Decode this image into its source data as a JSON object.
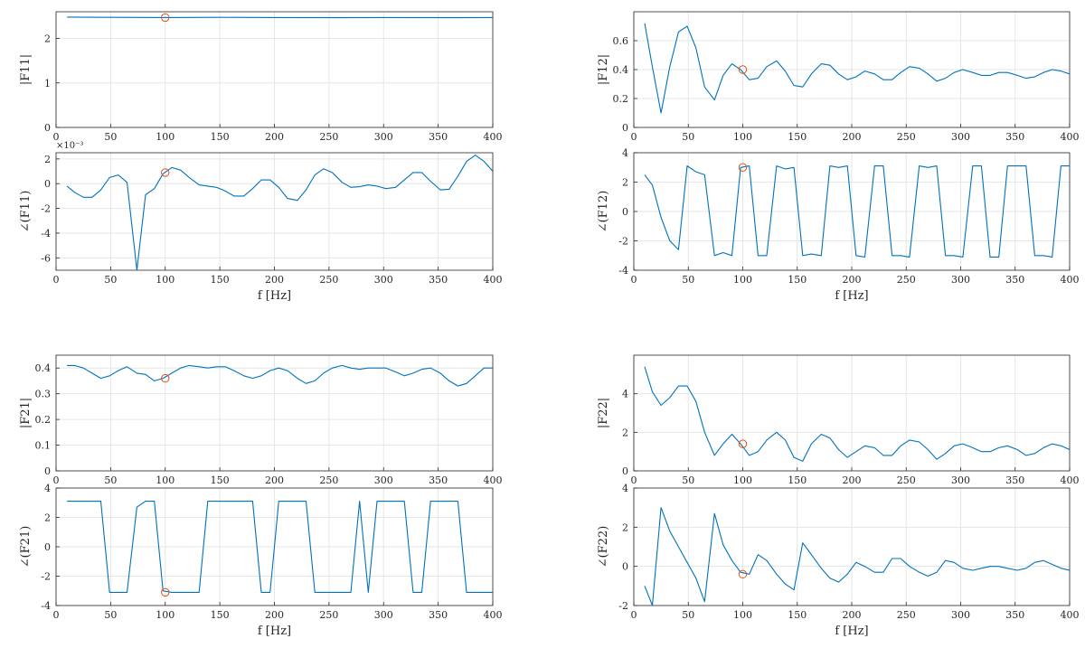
{
  "colors": {
    "series": "#0072BD",
    "marker": "#D95319"
  },
  "chart_data": [
    {
      "type": "line",
      "xlabel": "",
      "ylabel": "|F11|",
      "xlim": [
        0,
        400
      ],
      "ylim": [
        0,
        2.6
      ],
      "xticks": [
        "0",
        "50",
        "100",
        "150",
        "200",
        "250",
        "300",
        "350",
        "400"
      ],
      "yticks": [
        {
          "v": 0,
          "t": "0"
        },
        {
          "v": 1,
          "t": "1"
        },
        {
          "v": 2,
          "t": "2"
        }
      ],
      "exponent": "",
      "grid": true,
      "x": [
        10,
        50,
        100,
        150,
        200,
        250,
        300,
        350,
        400
      ],
      "y": [
        2.48,
        2.475,
        2.47,
        2.475,
        2.47,
        2.465,
        2.47,
        2.465,
        2.47
      ],
      "marker": {
        "x": 100,
        "y": 2.47
      }
    },
    {
      "type": "line",
      "xlabel": "f [Hz]",
      "ylabel": "∠(F11)",
      "xlim": [
        0,
        400
      ],
      "ylim": [
        -7,
        2.5
      ],
      "xticks": [
        "0",
        "50",
        "100",
        "150",
        "200",
        "250",
        "300",
        "350",
        "400"
      ],
      "yticks": [
        {
          "v": -6,
          "t": "-6"
        },
        {
          "v": -4,
          "t": "-4"
        },
        {
          "v": -2,
          "t": "-2"
        },
        {
          "v": 0,
          "t": "0"
        },
        {
          "v": 2,
          "t": "2"
        }
      ],
      "exponent": "×10⁻³",
      "grid": true,
      "x": [
        10,
        17,
        25,
        33,
        41,
        49,
        57,
        65,
        74,
        82,
        90,
        98,
        106,
        114,
        122,
        131,
        139,
        147,
        155,
        163,
        172,
        180,
        188,
        196,
        204,
        212,
        221,
        229,
        237,
        245,
        253,
        262,
        270,
        278,
        286,
        294,
        302,
        311,
        319,
        327,
        335,
        343,
        352,
        360,
        368,
        376,
        384,
        392,
        400
      ],
      "y": [
        -0.2,
        -0.7,
        -1.1,
        -1.1,
        -0.5,
        0.5,
        0.7,
        0.1,
        -7.0,
        -0.9,
        -0.4,
        0.8,
        1.3,
        1.1,
        0.5,
        -0.1,
        -0.2,
        -0.3,
        -0.6,
        -1.0,
        -1.0,
        -0.4,
        0.3,
        0.3,
        -0.3,
        -1.2,
        -1.35,
        -0.5,
        0.7,
        1.2,
        0.9,
        0.1,
        -0.3,
        -0.25,
        -0.1,
        -0.2,
        -0.4,
        -0.3,
        0.3,
        0.9,
        0.9,
        0.2,
        -0.5,
        -0.45,
        0.6,
        1.8,
        2.3,
        1.8,
        1.0
      ],
      "marker": {
        "x": 100,
        "y": 0.9
      }
    },
    {
      "type": "line",
      "xlabel": "",
      "ylabel": "|F12|",
      "xlim": [
        0,
        400
      ],
      "ylim": [
        0,
        0.8
      ],
      "xticks": [
        "0",
        "50",
        "100",
        "150",
        "200",
        "250",
        "300",
        "350",
        "400"
      ],
      "yticks": [
        {
          "v": 0,
          "t": "0"
        },
        {
          "v": 0.2,
          "t": "0.2"
        },
        {
          "v": 0.4,
          "t": "0.4"
        },
        {
          "v": 0.6,
          "t": "0.6"
        }
      ],
      "exponent": "",
      "grid": true,
      "x": [
        10,
        17,
        25,
        33,
        41,
        49,
        57,
        65,
        74,
        82,
        90,
        98,
        106,
        114,
        122,
        131,
        139,
        147,
        155,
        163,
        172,
        180,
        188,
        196,
        204,
        212,
        221,
        229,
        237,
        245,
        253,
        262,
        270,
        278,
        286,
        294,
        302,
        311,
        319,
        327,
        335,
        343,
        352,
        360,
        368,
        376,
        384,
        392,
        400
      ],
      "y": [
        0.72,
        0.42,
        0.1,
        0.42,
        0.66,
        0.7,
        0.55,
        0.28,
        0.19,
        0.36,
        0.44,
        0.4,
        0.33,
        0.34,
        0.42,
        0.46,
        0.39,
        0.29,
        0.28,
        0.37,
        0.44,
        0.43,
        0.37,
        0.33,
        0.35,
        0.39,
        0.37,
        0.33,
        0.33,
        0.38,
        0.42,
        0.41,
        0.37,
        0.32,
        0.34,
        0.38,
        0.4,
        0.38,
        0.36,
        0.36,
        0.38,
        0.38,
        0.36,
        0.34,
        0.35,
        0.38,
        0.4,
        0.39,
        0.37
      ],
      "marker": {
        "x": 100,
        "y": 0.4
      }
    },
    {
      "type": "line",
      "xlabel": "f [Hz]",
      "ylabel": "∠(F12)",
      "xlim": [
        0,
        400
      ],
      "ylim": [
        -4,
        4
      ],
      "xticks": [
        "0",
        "50",
        "100",
        "150",
        "200",
        "250",
        "300",
        "350",
        "400"
      ],
      "yticks": [
        {
          "v": -4,
          "t": "-4"
        },
        {
          "v": -2,
          "t": "-2"
        },
        {
          "v": 0,
          "t": "0"
        },
        {
          "v": 2,
          "t": "2"
        },
        {
          "v": 4,
          "t": "4"
        }
      ],
      "exponent": "",
      "grid": true,
      "x": [
        10,
        17,
        25,
        33,
        41,
        49,
        57,
        65,
        74,
        82,
        90,
        98,
        106,
        114,
        122,
        131,
        139,
        147,
        155,
        163,
        172,
        180,
        188,
        196,
        204,
        212,
        221,
        229,
        237,
        245,
        253,
        262,
        270,
        278,
        286,
        294,
        302,
        311,
        319,
        327,
        335,
        343,
        352,
        360,
        368,
        376,
        384,
        392,
        400
      ],
      "y": [
        2.5,
        1.8,
        -0.4,
        -2.0,
        -2.6,
        3.1,
        2.7,
        2.5,
        -3.0,
        -2.8,
        -3.0,
        3.0,
        3.1,
        -3.0,
        -3.0,
        3.1,
        2.9,
        3.0,
        -3.0,
        -2.9,
        -3.0,
        3.1,
        3.0,
        3.1,
        -3.0,
        -3.1,
        3.1,
        3.1,
        -3.0,
        -3.0,
        -3.1,
        3.1,
        3.0,
        3.1,
        -3.0,
        -3.0,
        -3.1,
        3.1,
        3.1,
        -3.1,
        -3.1,
        3.1,
        3.1,
        3.1,
        -3.0,
        -3.0,
        -3.1,
        3.1,
        3.1
      ],
      "marker": {
        "x": 100,
        "y": 3.0
      }
    },
    {
      "type": "line",
      "xlabel": "",
      "ylabel": "|F21|",
      "xlim": [
        0,
        400
      ],
      "ylim": [
        0,
        0.45
      ],
      "xticks": [
        "0",
        "50",
        "100",
        "150",
        "200",
        "250",
        "300",
        "350",
        "400"
      ],
      "yticks": [
        {
          "v": 0,
          "t": "0"
        },
        {
          "v": 0.1,
          "t": "0.1"
        },
        {
          "v": 0.2,
          "t": "0.2"
        },
        {
          "v": 0.3,
          "t": "0.3"
        },
        {
          "v": 0.4,
          "t": "0.4"
        }
      ],
      "exponent": "",
      "grid": true,
      "x": [
        10,
        17,
        25,
        33,
        41,
        49,
        57,
        65,
        74,
        82,
        90,
        98,
        106,
        114,
        122,
        131,
        139,
        147,
        155,
        163,
        172,
        180,
        188,
        196,
        204,
        212,
        221,
        229,
        237,
        245,
        253,
        262,
        270,
        278,
        286,
        294,
        302,
        311,
        319,
        327,
        335,
        343,
        352,
        360,
        368,
        376,
        384,
        392,
        400
      ],
      "y": [
        0.41,
        0.41,
        0.4,
        0.38,
        0.36,
        0.37,
        0.39,
        0.405,
        0.38,
        0.375,
        0.35,
        0.36,
        0.38,
        0.4,
        0.41,
        0.405,
        0.4,
        0.405,
        0.405,
        0.39,
        0.37,
        0.36,
        0.37,
        0.39,
        0.4,
        0.39,
        0.36,
        0.34,
        0.35,
        0.38,
        0.4,
        0.41,
        0.4,
        0.395,
        0.4,
        0.4,
        0.4,
        0.385,
        0.37,
        0.38,
        0.395,
        0.4,
        0.38,
        0.35,
        0.33,
        0.34,
        0.37,
        0.4,
        0.4
      ],
      "marker": {
        "x": 100,
        "y": 0.36
      }
    },
    {
      "type": "line",
      "xlabel": "f [Hz]",
      "ylabel": "∠(F21)",
      "xlim": [
        0,
        400
      ],
      "ylim": [
        -4,
        4
      ],
      "xticks": [
        "0",
        "50",
        "100",
        "150",
        "200",
        "250",
        "300",
        "350",
        "400"
      ],
      "yticks": [
        {
          "v": -4,
          "t": "-4"
        },
        {
          "v": -2,
          "t": "-2"
        },
        {
          "v": 0,
          "t": "0"
        },
        {
          "v": 2,
          "t": "2"
        },
        {
          "v": 4,
          "t": "4"
        }
      ],
      "exponent": "",
      "grid": true,
      "x": [
        10,
        17,
        25,
        33,
        41,
        49,
        57,
        65,
        74,
        82,
        90,
        98,
        106,
        114,
        122,
        131,
        139,
        147,
        155,
        163,
        172,
        180,
        188,
        196,
        204,
        212,
        221,
        229,
        237,
        245,
        253,
        262,
        270,
        278,
        286,
        294,
        302,
        311,
        319,
        327,
        335,
        343,
        352,
        360,
        368,
        376,
        384,
        392,
        400
      ],
      "y": [
        3.1,
        3.1,
        3.1,
        3.1,
        3.1,
        -3.1,
        -3.1,
        -3.1,
        2.7,
        3.1,
        3.1,
        -3.0,
        -3.1,
        -3.1,
        -3.1,
        -3.1,
        3.1,
        3.1,
        3.1,
        3.1,
        3.1,
        3.1,
        -3.1,
        -3.1,
        3.1,
        3.1,
        3.1,
        3.1,
        -3.1,
        -3.1,
        -3.1,
        -3.1,
        -3.1,
        3.1,
        -3.1,
        3.1,
        3.1,
        3.1,
        3.1,
        -3.1,
        -3.1,
        3.1,
        3.1,
        3.1,
        3.1,
        -3.1,
        -3.1,
        -3.1,
        -3.1
      ],
      "marker": {
        "x": 100,
        "y": -3.1
      }
    },
    {
      "type": "line",
      "xlabel": "",
      "ylabel": "|F22|",
      "xlim": [
        0,
        400
      ],
      "ylim": [
        0,
        6
      ],
      "xticks": [
        "0",
        "50",
        "100",
        "150",
        "200",
        "250",
        "300",
        "350",
        "400"
      ],
      "yticks": [
        {
          "v": 0,
          "t": "0"
        },
        {
          "v": 2,
          "t": "2"
        },
        {
          "v": 4,
          "t": "4"
        }
      ],
      "exponent": "",
      "grid": true,
      "x": [
        10,
        17,
        25,
        33,
        41,
        49,
        57,
        65,
        74,
        82,
        90,
        98,
        106,
        114,
        122,
        131,
        139,
        147,
        155,
        163,
        172,
        180,
        188,
        196,
        204,
        212,
        221,
        229,
        237,
        245,
        253,
        262,
        270,
        278,
        286,
        294,
        302,
        311,
        319,
        327,
        335,
        343,
        352,
        360,
        368,
        376,
        384,
        392,
        400
      ],
      "y": [
        5.4,
        4.1,
        3.4,
        3.8,
        4.4,
        4.4,
        3.6,
        2.0,
        0.8,
        1.4,
        1.9,
        1.4,
        0.8,
        1.0,
        1.6,
        2.0,
        1.6,
        0.7,
        0.5,
        1.4,
        1.9,
        1.7,
        1.1,
        0.7,
        1.0,
        1.3,
        1.2,
        0.8,
        0.8,
        1.3,
        1.6,
        1.5,
        1.1,
        0.6,
        0.9,
        1.3,
        1.4,
        1.2,
        1.0,
        1.0,
        1.2,
        1.3,
        1.1,
        0.8,
        0.9,
        1.2,
        1.4,
        1.3,
        1.1
      ],
      "marker": {
        "x": 100,
        "y": 1.4
      }
    },
    {
      "type": "line",
      "xlabel": "f [Hz]",
      "ylabel": "∠(F22)",
      "xlim": [
        0,
        400
      ],
      "ylim": [
        -2,
        4
      ],
      "xticks": [
        "0",
        "50",
        "100",
        "150",
        "200",
        "250",
        "300",
        "350",
        "400"
      ],
      "yticks": [
        {
          "v": -2,
          "t": "-2"
        },
        {
          "v": 0,
          "t": "0"
        },
        {
          "v": 2,
          "t": "2"
        },
        {
          "v": 4,
          "t": "4"
        }
      ],
      "exponent": "",
      "grid": true,
      "x": [
        10,
        17,
        25,
        33,
        41,
        49,
        57,
        65,
        74,
        82,
        90,
        98,
        106,
        114,
        122,
        131,
        139,
        147,
        155,
        163,
        172,
        180,
        188,
        196,
        204,
        212,
        221,
        229,
        237,
        245,
        253,
        262,
        270,
        278,
        286,
        294,
        302,
        311,
        319,
        327,
        335,
        343,
        352,
        360,
        368,
        376,
        384,
        392,
        400
      ],
      "y": [
        -1.0,
        -2.0,
        3.0,
        1.8,
        1.0,
        0.2,
        -0.6,
        -1.8,
        2.7,
        1.1,
        0.3,
        -0.3,
        -0.4,
        0.6,
        0.3,
        -0.4,
        -0.9,
        -1.2,
        1.2,
        0.6,
        -0.1,
        -0.6,
        -0.8,
        -0.4,
        0.2,
        0.0,
        -0.3,
        -0.3,
        0.4,
        0.4,
        0.0,
        -0.3,
        -0.5,
        -0.3,
        0.3,
        0.2,
        -0.1,
        -0.2,
        -0.1,
        0.0,
        0.0,
        -0.1,
        -0.2,
        -0.1,
        0.2,
        0.3,
        0.1,
        -0.1,
        -0.2
      ],
      "marker": {
        "x": 100,
        "y": -0.4
      }
    }
  ]
}
